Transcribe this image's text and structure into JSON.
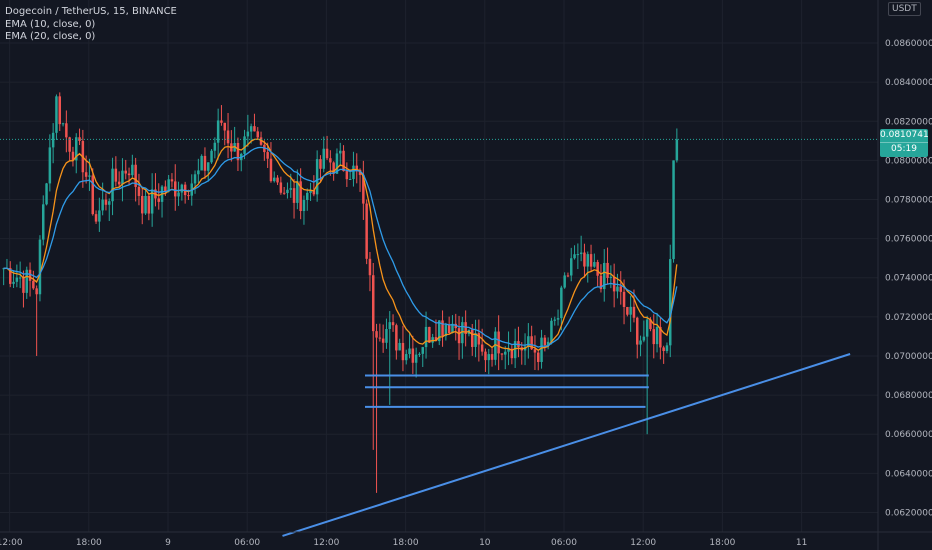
{
  "legend": {
    "symbol": "Dogecoin / TetherUS, 15, BINANCE",
    "ema10": "EMA (10, close, 0)",
    "ema20": "EMA (20, close, 0)"
  },
  "currency": "USDT",
  "last_price": {
    "value": "0.0810741",
    "countdown": "05:19"
  },
  "colors": {
    "background": "#131722",
    "up": "#26a69a",
    "down": "#ef5350",
    "ema10": "#f7931a",
    "ema20": "#2f9be8",
    "drawing": "#4a8fe7",
    "axis_text": "#b2b5be",
    "dotted_price_line": "#26a69a"
  },
  "chart_data": {
    "type": "candlestick",
    "symbol": "Dogecoin / TetherUS",
    "interval": "15",
    "exchange": "BINANCE",
    "y_axis": {
      "min": 0.061,
      "max": 0.0882,
      "ticks": [
        "0.0860000",
        "0.0840000",
        "0.0820000",
        "0.0800000",
        "0.0780000",
        "0.0760000",
        "0.0740000",
        "0.0720000",
        "0.0700000",
        "0.0680000",
        "0.0660000",
        "0.0640000",
        "0.0620000"
      ]
    },
    "x_axis": {
      "ticks": [
        {
          "label": "12:00",
          "bar": 2
        },
        {
          "label": "18:00",
          "bar": 26
        },
        {
          "label": "9",
          "bar": 50
        },
        {
          "label": "06:00",
          "bar": 74
        },
        {
          "label": "12:00",
          "bar": 98
        },
        {
          "label": "18:00",
          "bar": 122
        },
        {
          "label": "10",
          "bar": 146
        },
        {
          "label": "06:00",
          "bar": 170
        },
        {
          "label": "12:00",
          "bar": 194
        },
        {
          "label": "18:00",
          "bar": 218
        },
        {
          "label": "11",
          "bar": 242
        }
      ]
    },
    "bar_count": 205,
    "last_price": 0.0810741,
    "drawings": {
      "horizontal_levels": [
        {
          "price": 0.069,
          "from_bar": 110,
          "to_bar": 196
        },
        {
          "price": 0.0684,
          "from_bar": 110,
          "to_bar": 196
        },
        {
          "price": 0.0674,
          "from_bar": 110,
          "to_bar": 195
        }
      ],
      "trendline": {
        "from": {
          "bar": 85,
          "price": 0.0608
        },
        "to": {
          "bar": 257,
          "price": 0.0701
        }
      }
    },
    "anchors": [
      [
        0,
        0.0745
      ],
      [
        10,
        0.0735
      ],
      [
        13,
        0.0795
      ],
      [
        16,
        0.083
      ],
      [
        19,
        0.0812
      ],
      [
        24,
        0.08
      ],
      [
        28,
        0.077
      ],
      [
        33,
        0.0788
      ],
      [
        38,
        0.0798
      ],
      [
        43,
        0.0775
      ],
      [
        48,
        0.0785
      ],
      [
        53,
        0.0788
      ],
      [
        58,
        0.079
      ],
      [
        62,
        0.08
      ],
      [
        66,
        0.082
      ],
      [
        70,
        0.0805
      ],
      [
        75,
        0.081
      ],
      [
        80,
        0.08
      ],
      [
        86,
        0.0782
      ],
      [
        92,
        0.0782
      ],
      [
        97,
        0.08
      ],
      [
        104,
        0.0798
      ],
      [
        108,
        0.079
      ],
      [
        112,
        0.0718
      ],
      [
        117,
        0.0712
      ],
      [
        121,
        0.0705
      ],
      [
        125,
        0.0703
      ],
      [
        130,
        0.0715
      ],
      [
        135,
        0.0718
      ],
      [
        140,
        0.0712
      ],
      [
        145,
        0.07
      ],
      [
        150,
        0.0708
      ],
      [
        155,
        0.0706
      ],
      [
        160,
        0.0703
      ],
      [
        164,
        0.0703
      ],
      [
        168,
        0.072
      ],
      [
        172,
        0.075
      ],
      [
        176,
        0.0745
      ],
      [
        180,
        0.0742
      ],
      [
        184,
        0.0738
      ],
      [
        188,
        0.0725
      ],
      [
        193,
        0.071
      ],
      [
        198,
        0.0712
      ],
      [
        201,
        0.0705
      ],
      [
        203,
        0.08
      ],
      [
        204,
        0.0810741
      ]
    ]
  }
}
